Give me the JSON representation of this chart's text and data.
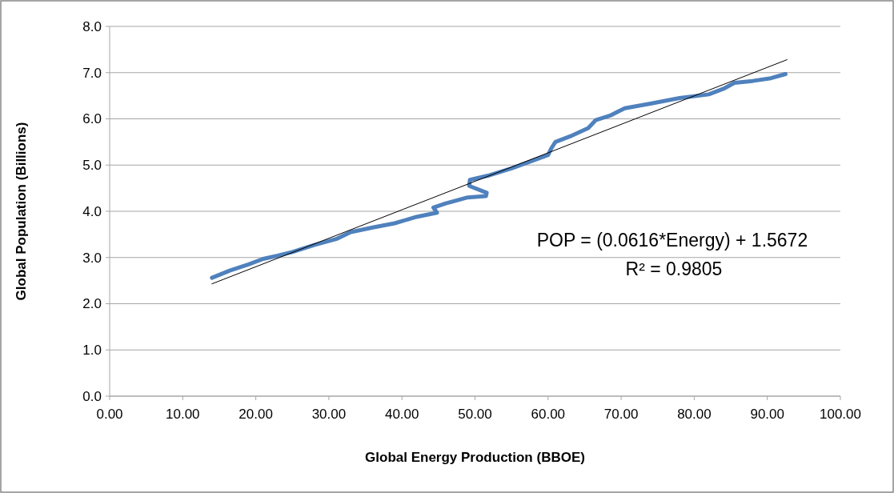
{
  "chart_data": {
    "type": "line",
    "xlabel": "Global Energy Production (BBOE)",
    "ylabel": "Global Population (Billions)",
    "xlim": [
      0,
      100
    ],
    "xticks": [
      {
        "value": 0,
        "label": "0.00"
      },
      {
        "value": 10,
        "label": "10.00"
      },
      {
        "value": 20,
        "label": "20.00"
      },
      {
        "value": 30,
        "label": "30.00"
      },
      {
        "value": 40,
        "label": "40.00"
      },
      {
        "value": 50,
        "label": "50.00"
      },
      {
        "value": 60,
        "label": "60.00"
      },
      {
        "value": 70,
        "label": "70.00"
      },
      {
        "value": 80,
        "label": "80.00"
      },
      {
        "value": 90,
        "label": "90.00"
      },
      {
        "value": 100,
        "label": "100.00"
      }
    ],
    "ylim": [
      0,
      8
    ],
    "yticks": [
      {
        "value": 0,
        "label": "0.0"
      },
      {
        "value": 1,
        "label": "1.0"
      },
      {
        "value": 2,
        "label": "2.0"
      },
      {
        "value": 3,
        "label": "3.0"
      },
      {
        "value": 4,
        "label": "4.0"
      },
      {
        "value": 5,
        "label": "5.0"
      },
      {
        "value": 6,
        "label": "6.0"
      },
      {
        "value": 7,
        "label": "7.0"
      },
      {
        "value": 8,
        "label": "8.0"
      }
    ],
    "grid": "y",
    "marker": "none",
    "line_style": "solid",
    "series": [
      {
        "color": "#4f81bd",
        "x": [
          14,
          16.5,
          19,
          21,
          23,
          25,
          28,
          31,
          33,
          36,
          39,
          42,
          44.8,
          44.3,
          46,
          49,
          51.5,
          51.6,
          49.2,
          49.3,
          52,
          55,
          58,
          60,
          60.4,
          61,
          63,
          65.5,
          66.5,
          68.5,
          69.5,
          70.5,
          74,
          78,
          82,
          84,
          85.5,
          88,
          90.5,
          92.5
        ],
        "values": [
          2.56,
          2.72,
          2.85,
          2.97,
          3.04,
          3.12,
          3.27,
          3.4,
          3.55,
          3.65,
          3.74,
          3.88,
          3.97,
          4.08,
          4.17,
          4.3,
          4.33,
          4.4,
          4.55,
          4.68,
          4.78,
          4.93,
          5.1,
          5.22,
          5.35,
          5.5,
          5.62,
          5.8,
          5.97,
          6.07,
          6.15,
          6.23,
          6.33,
          6.45,
          6.53,
          6.65,
          6.78,
          6.82,
          6.88,
          6.97
        ]
      },
      {
        "color": "#000000",
        "x": [
          14,
          92.7
        ],
        "values": [
          2.43,
          7.28
        ]
      }
    ],
    "annotations": [
      "POP = (0.0616*Energy) + 1.5672",
      "R² = 0.9805"
    ]
  }
}
